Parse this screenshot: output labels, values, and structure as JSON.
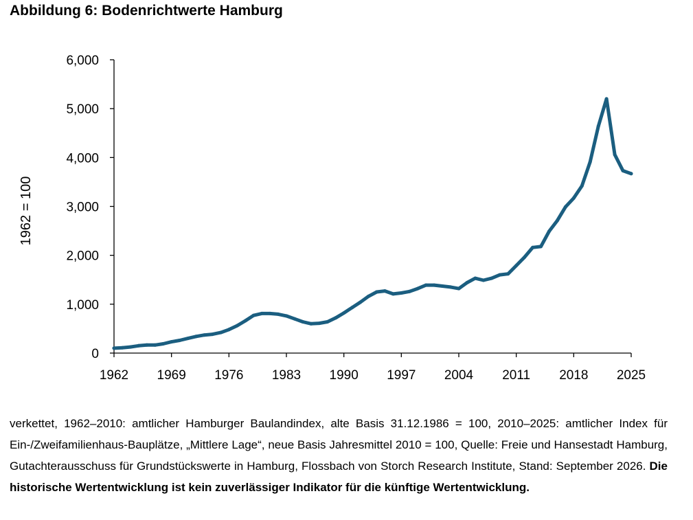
{
  "title": "Abbildung 6: Bodenrichtwerte Hamburg",
  "caption": {
    "text": "verkettet, 1962–2010: amtlicher Hamburger Baulandindex, alte Basis 31.12.1986 = 100, 2010–2025: amtlicher Index für Ein-/Zweifamilienhaus-Bauplätze, „Mittlere Lage“, neue Basis Jahresmittel 2010 = 100, Quelle: Freie und Hansestadt Hamburg, Gutachterausschuss für Grundstückswerte in Hamburg, Flossbach von Storch Research Institute, Stand: September 2026.",
    "disclaimer": "Die historische Wertentwicklung ist kein zuverlässiger Indikator für die künftige Wertentwicklung."
  },
  "chart_data": {
    "type": "line",
    "title": "",
    "xlabel": "",
    "ylabel": "1962 = 100",
    "xlim": [
      1962,
      2025
    ],
    "ylim": [
      0,
      6000
    ],
    "xticks": [
      1962,
      1969,
      1976,
      1983,
      1990,
      1997,
      2004,
      2011,
      2018,
      2025
    ],
    "xtick_labels": [
      "1962",
      "1969",
      "1976",
      "1983",
      "1990",
      "1997",
      "2004",
      "2011",
      "2018",
      "2025"
    ],
    "yticks": [
      0,
      1000,
      2000,
      3000,
      4000,
      5000,
      6000
    ],
    "ytick_labels": [
      "0",
      "1,000",
      "2,000",
      "3,000",
      "4,000",
      "5,000",
      "6,000"
    ],
    "grid": false,
    "legend": "none",
    "series_color": "#1b5e80",
    "series": [
      {
        "x": [
          1962,
          1963,
          1964,
          1965,
          1966,
          1967,
          1968,
          1969,
          1970,
          1971,
          1972,
          1973,
          1974,
          1975,
          1976,
          1977,
          1978,
          1979,
          1980,
          1981,
          1982,
          1983,
          1984,
          1985,
          1986,
          1987,
          1988,
          1989,
          1990,
          1991,
          1992,
          1993,
          1994,
          1995,
          1996,
          1997,
          1998,
          1999,
          2000,
          2001,
          2002,
          2003,
          2004,
          2005,
          2006,
          2007,
          2008,
          2009,
          2010,
          2011,
          2012,
          2013,
          2014,
          2015,
          2016,
          2017,
          2018,
          2019,
          2020,
          2021,
          2022,
          2023,
          2024,
          2025
        ],
        "values": [
          100,
          110,
          125,
          150,
          165,
          165,
          190,
          230,
          260,
          300,
          340,
          370,
          385,
          420,
          480,
          560,
          660,
          770,
          810,
          810,
          795,
          760,
          700,
          640,
          600,
          610,
          640,
          720,
          820,
          930,
          1040,
          1160,
          1250,
          1270,
          1210,
          1230,
          1260,
          1320,
          1390,
          1390,
          1370,
          1350,
          1320,
          1440,
          1530,
          1490,
          1530,
          1600,
          1620,
          1790,
          1960,
          2160,
          2180,
          2490,
          2710,
          2990,
          3170,
          3420,
          3910,
          4640,
          5200,
          4060,
          3730,
          3670
        ]
      }
    ]
  }
}
